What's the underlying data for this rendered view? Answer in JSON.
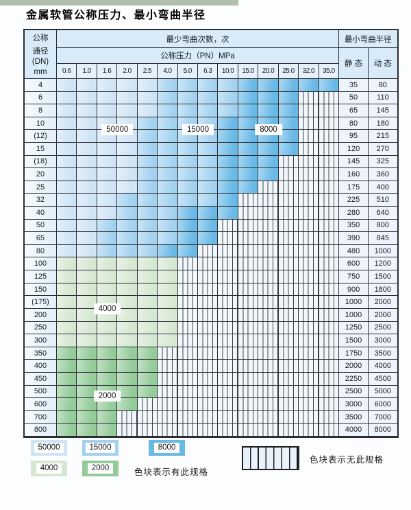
{
  "title": "金属软管公称压力、最小弯曲半径",
  "header": {
    "dn_lines": [
      "公称",
      "通径",
      "(DN)",
      "mm"
    ],
    "bend_count_span": "最少弯曲次数，次",
    "pressure_span": "公称压力（PN）MPa",
    "radius_span": "最小弯曲半径",
    "static_label": "静 态",
    "dynamic_label": "动 态"
  },
  "chart_data": {
    "type": "heatmap-table",
    "title": "金属软管公称压力、最小弯曲半径",
    "pressure_columns_mpa": [
      "0.6",
      "1.0",
      "1.6",
      "2.0",
      "2.5",
      "4.0",
      "5.0",
      "6.3",
      "10.0",
      "15.0",
      "20.0",
      "25.0",
      "32.0",
      "35.0"
    ],
    "bend_cycle_bands": {
      "blue_light": "50000",
      "blue_medium": "15000",
      "blue_dark": "8000",
      "green_light": "4000",
      "green_medium": "2000"
    },
    "rows": [
      {
        "dn": "4",
        "static": "35",
        "dynamic": "80",
        "band": "blue",
        "light_end": 5,
        "med_end": 9,
        "colored_end": 14
      },
      {
        "dn": "6",
        "static": "50",
        "dynamic": "110",
        "band": "blue",
        "light_end": 5,
        "med_end": 9,
        "colored_end": 12
      },
      {
        "dn": "8",
        "static": "65",
        "dynamic": "145",
        "band": "blue",
        "light_end": 5,
        "med_end": 9,
        "colored_end": 12
      },
      {
        "dn": "10",
        "static": "80",
        "dynamic": "180",
        "band": "blue",
        "light_end": 4,
        "med_end": 8,
        "colored_end": 12
      },
      {
        "dn": "(12)",
        "static": "95",
        "dynamic": "215",
        "band": "blue",
        "light_end": 4,
        "med_end": 8,
        "colored_end": 12
      },
      {
        "dn": "15",
        "static": "120",
        "dynamic": "270",
        "band": "blue",
        "light_end": 4,
        "med_end": 8,
        "colored_end": 12
      },
      {
        "dn": "(18)",
        "static": "145",
        "dynamic": "325",
        "band": "blue",
        "light_end": 4,
        "med_end": 8,
        "colored_end": 11
      },
      {
        "dn": "20",
        "static": "160",
        "dynamic": "360",
        "band": "blue",
        "light_end": 4,
        "med_end": 8,
        "colored_end": 11
      },
      {
        "dn": "25",
        "static": "175",
        "dynamic": "400",
        "band": "blue",
        "light_end": 4,
        "med_end": 8,
        "colored_end": 10
      },
      {
        "dn": "32",
        "static": "225",
        "dynamic": "510",
        "band": "blue",
        "light_end": 3,
        "med_end": 8,
        "colored_end": 9
      },
      {
        "dn": "40",
        "static": "280",
        "dynamic": "640",
        "band": "blue",
        "light_end": 3,
        "med_end": 6,
        "colored_end": 9
      },
      {
        "dn": "50",
        "static": "350",
        "dynamic": "800",
        "band": "blue",
        "light_end": 2,
        "med_end": 6,
        "colored_end": 8
      },
      {
        "dn": "65",
        "static": "390",
        "dynamic": "845",
        "band": "blue",
        "light_end": 2,
        "med_end": 6,
        "colored_end": 8
      },
      {
        "dn": "80",
        "static": "480",
        "dynamic": "1000",
        "band": "blue",
        "light_end": 2,
        "med_end": 5,
        "colored_end": 7
      },
      {
        "dn": "100",
        "static": "600",
        "dynamic": "1200",
        "band": "g4",
        "colored_end": 6
      },
      {
        "dn": "125",
        "static": "750",
        "dynamic": "1500",
        "band": "g4",
        "colored_end": 6
      },
      {
        "dn": "150",
        "static": "900",
        "dynamic": "1800",
        "band": "g4",
        "colored_end": 6
      },
      {
        "dn": "(175)",
        "static": "1000",
        "dynamic": "2000",
        "band": "g4",
        "colored_end": 6
      },
      {
        "dn": "200",
        "static": "1000",
        "dynamic": "2000",
        "band": "g4",
        "colored_end": 6
      },
      {
        "dn": "250",
        "static": "1250",
        "dynamic": "2500",
        "band": "g4",
        "colored_end": 6
      },
      {
        "dn": "300",
        "static": "1500",
        "dynamic": "3000",
        "band": "g4",
        "colored_end": 6
      },
      {
        "dn": "350",
        "static": "1750",
        "dynamic": "3500",
        "band": "g2",
        "colored_end": 5
      },
      {
        "dn": "400",
        "static": "2000",
        "dynamic": "4000",
        "band": "g2",
        "colored_end": 5
      },
      {
        "dn": "450",
        "static": "2250",
        "dynamic": "4500",
        "band": "g2",
        "colored_end": 5
      },
      {
        "dn": "500",
        "static": "2500",
        "dynamic": "5000",
        "band": "g2",
        "colored_end": 5
      },
      {
        "dn": "600",
        "static": "3000",
        "dynamic": "6000",
        "band": "g2",
        "colored_end": 4
      },
      {
        "dn": "700",
        "static": "3500",
        "dynamic": "7000",
        "band": "g2",
        "colored_end": 3
      },
      {
        "dn": "800",
        "static": "4000",
        "dynamic": "8000",
        "band": "g2",
        "colored_end": 3
      }
    ]
  },
  "overlay_labels": [
    {
      "text": "50000",
      "col_u": 3.0,
      "row_u": 4.0
    },
    {
      "text": "15000",
      "col_u": 7.0,
      "row_u": 4.0
    },
    {
      "text": "8000",
      "col_u": 10.5,
      "row_u": 4.0
    },
    {
      "text": "4000",
      "col_u": 2.5,
      "row_u": 18.0
    },
    {
      "text": "2000",
      "col_u": 2.5,
      "row_u": 24.85
    }
  ],
  "legend": {
    "items": [
      {
        "label": "50000",
        "color_key": "c50"
      },
      {
        "label": "15000",
        "color_key": "c15"
      },
      {
        "label": "8000",
        "color_key": "c8"
      },
      {
        "label": "4000",
        "color_key": "c4"
      },
      {
        "label": "2000",
        "color_key": "c2"
      }
    ],
    "has_spec_text": "色块表示有此规格",
    "no_spec_text": "色块表示无此规格"
  },
  "colors": {
    "c50": "#cfe4f6",
    "c15": "#a3d2f0",
    "c8": "#69b9e7",
    "c4": "#d6e8d1",
    "c2": "#93cb99",
    "border": "#2b2f33"
  }
}
